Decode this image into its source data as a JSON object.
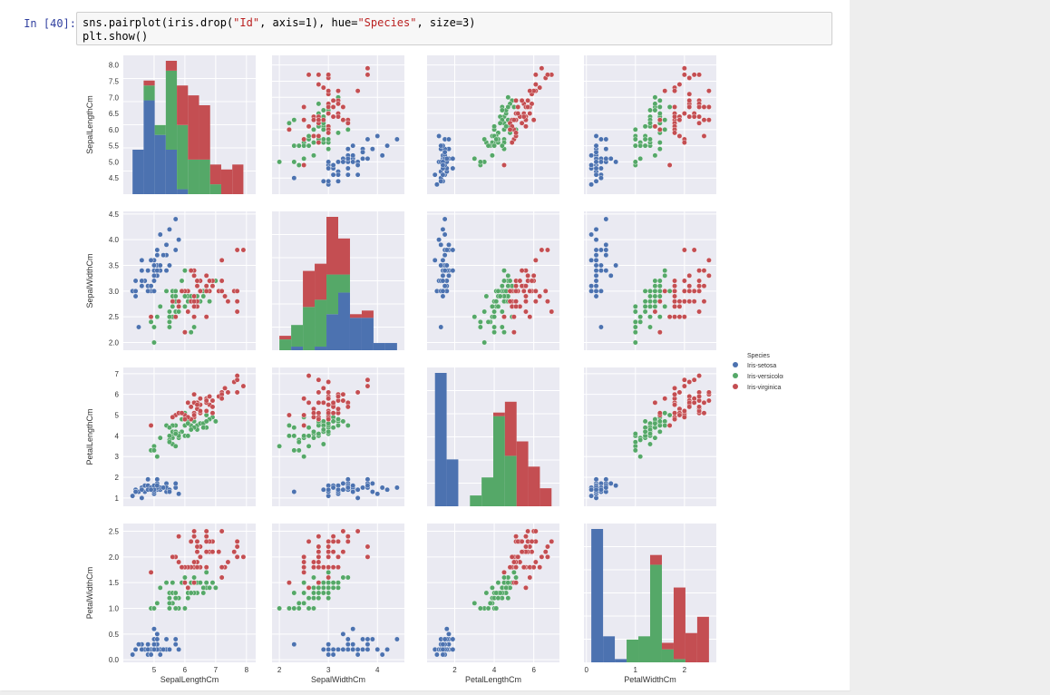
{
  "cell": {
    "prompt": "In [40]:",
    "code": {
      "line1": [
        {
          "text": "sns.pairplot(iris.drop(",
          "cls": ""
        },
        {
          "text": "\"Id\"",
          "cls": "tok-str"
        },
        {
          "text": ", axis=1), hue=",
          "cls": ""
        },
        {
          "text": "\"Species\"",
          "cls": "tok-str"
        },
        {
          "text": ", size=3)",
          "cls": ""
        }
      ],
      "line2": "plt.show()"
    }
  },
  "colors": {
    "setosa": "#4c72b0",
    "versicolor": "#55a868",
    "virginica": "#c44e52",
    "panel_bg": "#eaeaf2",
    "grid": "#ffffff"
  },
  "chart_data": {
    "type": "scatter",
    "variables": [
      "SepalLengthCm",
      "SepalWidthCm",
      "PetalLengthCm",
      "PetalWidthCm"
    ],
    "ranges": {
      "SepalLengthCm": [
        4.0,
        8.3
      ],
      "SepalWidthCm": [
        1.85,
        4.55
      ],
      "PetalLengthCm": [
        0.6,
        7.3
      ],
      "PetalWidthCm": [
        -0.05,
        2.65
      ]
    },
    "xticks": {
      "SepalLengthCm": [
        5,
        6,
        7,
        8
      ],
      "SepalWidthCm": [
        2,
        3,
        4
      ],
      "PetalLengthCm": [
        2,
        4,
        6
      ],
      "PetalWidthCm": [
        0,
        1,
        2
      ]
    },
    "yticks": {
      "SepalLengthCm": [
        "4.5",
        "5.0",
        "5.5",
        "6.0",
        "6.5",
        "7.0",
        "7.5",
        "8.0"
      ],
      "SepalWidthCm": [
        "2.0",
        "2.5",
        "3.0",
        "3.5",
        "4.0",
        "4.5"
      ],
      "PetalLengthCm": [
        "1",
        "2",
        "3",
        "4",
        "5",
        "6",
        "7"
      ],
      "PetalWidthCm": [
        "0.0",
        "0.5",
        "1.0",
        "1.5",
        "2.0",
        "2.5"
      ]
    },
    "legend": {
      "title": "Species",
      "entries": [
        "Iris-setosa",
        "Iris-versicolor",
        "Iris-virginica"
      ],
      "position": "right"
    },
    "grid": true,
    "series": [
      {
        "name": "Iris-setosa",
        "points": [
          [
            5.1,
            3.5,
            1.4,
            0.2
          ],
          [
            4.9,
            3.0,
            1.4,
            0.2
          ],
          [
            4.7,
            3.2,
            1.3,
            0.2
          ],
          [
            4.6,
            3.1,
            1.5,
            0.2
          ],
          [
            5.0,
            3.6,
            1.4,
            0.2
          ],
          [
            5.4,
            3.9,
            1.7,
            0.4
          ],
          [
            4.6,
            3.4,
            1.4,
            0.3
          ],
          [
            5.0,
            3.4,
            1.5,
            0.2
          ],
          [
            4.4,
            2.9,
            1.4,
            0.2
          ],
          [
            4.9,
            3.1,
            1.5,
            0.1
          ],
          [
            5.4,
            3.7,
            1.5,
            0.2
          ],
          [
            4.8,
            3.4,
            1.6,
            0.2
          ],
          [
            4.8,
            3.0,
            1.4,
            0.1
          ],
          [
            4.3,
            3.0,
            1.1,
            0.1
          ],
          [
            5.8,
            4.0,
            1.2,
            0.2
          ],
          [
            5.7,
            4.4,
            1.5,
            0.4
          ],
          [
            5.4,
            3.9,
            1.3,
            0.4
          ],
          [
            5.1,
            3.5,
            1.4,
            0.3
          ],
          [
            5.7,
            3.8,
            1.7,
            0.3
          ],
          [
            5.1,
            3.8,
            1.5,
            0.3
          ],
          [
            5.4,
            3.4,
            1.7,
            0.2
          ],
          [
            5.1,
            3.7,
            1.5,
            0.4
          ],
          [
            4.6,
            3.6,
            1.0,
            0.2
          ],
          [
            5.1,
            3.3,
            1.7,
            0.5
          ],
          [
            4.8,
            3.4,
            1.9,
            0.2
          ],
          [
            5.0,
            3.0,
            1.6,
            0.2
          ],
          [
            5.0,
            3.4,
            1.6,
            0.4
          ],
          [
            5.2,
            3.5,
            1.5,
            0.2
          ],
          [
            5.2,
            3.4,
            1.4,
            0.2
          ],
          [
            4.7,
            3.2,
            1.6,
            0.2
          ],
          [
            4.8,
            3.1,
            1.6,
            0.2
          ],
          [
            5.4,
            3.4,
            1.5,
            0.4
          ],
          [
            5.2,
            4.1,
            1.5,
            0.1
          ],
          [
            5.5,
            4.2,
            1.4,
            0.2
          ],
          [
            4.9,
            3.1,
            1.5,
            0.1
          ],
          [
            5.0,
            3.2,
            1.2,
            0.2
          ],
          [
            5.5,
            3.5,
            1.3,
            0.2
          ],
          [
            4.4,
            3.0,
            1.3,
            0.2
          ],
          [
            5.1,
            3.4,
            1.5,
            0.2
          ],
          [
            5.0,
            3.5,
            1.3,
            0.3
          ],
          [
            4.5,
            2.3,
            1.3,
            0.3
          ],
          [
            4.4,
            3.2,
            1.3,
            0.2
          ],
          [
            5.0,
            3.5,
            1.6,
            0.6
          ],
          [
            5.1,
            3.8,
            1.9,
            0.4
          ],
          [
            4.8,
            3.0,
            1.4,
            0.3
          ],
          [
            5.1,
            3.8,
            1.6,
            0.2
          ],
          [
            4.6,
            3.2,
            1.4,
            0.2
          ],
          [
            5.3,
            3.7,
            1.5,
            0.2
          ],
          [
            5.0,
            3.3,
            1.4,
            0.2
          ],
          [
            4.9,
            3.6,
            1.4,
            0.1
          ]
        ]
      },
      {
        "name": "Iris-versicolor",
        "points": [
          [
            7.0,
            3.2,
            4.7,
            1.4
          ],
          [
            6.4,
            3.2,
            4.5,
            1.5
          ],
          [
            6.9,
            3.1,
            4.9,
            1.5
          ],
          [
            5.5,
            2.3,
            4.0,
            1.3
          ],
          [
            6.5,
            2.8,
            4.6,
            1.5
          ],
          [
            5.7,
            2.8,
            4.5,
            1.3
          ],
          [
            6.3,
            3.3,
            4.7,
            1.6
          ],
          [
            4.9,
            2.4,
            3.3,
            1.0
          ],
          [
            6.6,
            2.9,
            4.6,
            1.3
          ],
          [
            5.2,
            2.7,
            3.9,
            1.4
          ],
          [
            5.0,
            2.0,
            3.5,
            1.0
          ],
          [
            5.9,
            3.0,
            4.2,
            1.5
          ],
          [
            6.0,
            2.2,
            4.0,
            1.0
          ],
          [
            6.1,
            2.9,
            4.7,
            1.4
          ],
          [
            5.6,
            2.9,
            3.6,
            1.3
          ],
          [
            6.7,
            3.1,
            4.4,
            1.4
          ],
          [
            5.6,
            3.0,
            4.5,
            1.5
          ],
          [
            5.8,
            2.7,
            4.1,
            1.0
          ],
          [
            6.2,
            2.2,
            4.5,
            1.5
          ],
          [
            5.6,
            2.5,
            3.9,
            1.1
          ],
          [
            5.9,
            3.2,
            4.8,
            1.8
          ],
          [
            6.1,
            2.8,
            4.0,
            1.3
          ],
          [
            6.3,
            2.5,
            4.9,
            1.5
          ],
          [
            6.1,
            2.8,
            4.7,
            1.2
          ],
          [
            6.4,
            2.9,
            4.3,
            1.3
          ],
          [
            6.6,
            3.0,
            4.4,
            1.4
          ],
          [
            6.8,
            2.8,
            4.8,
            1.4
          ],
          [
            6.7,
            3.0,
            5.0,
            1.7
          ],
          [
            6.0,
            2.9,
            4.5,
            1.5
          ],
          [
            5.7,
            2.6,
            3.5,
            1.0
          ],
          [
            5.5,
            2.4,
            3.8,
            1.1
          ],
          [
            5.5,
            2.4,
            3.7,
            1.0
          ],
          [
            5.8,
            2.7,
            3.9,
            1.2
          ],
          [
            6.0,
            2.7,
            5.1,
            1.6
          ],
          [
            5.4,
            3.0,
            4.5,
            1.5
          ],
          [
            6.0,
            3.4,
            4.5,
            1.6
          ],
          [
            6.7,
            3.1,
            4.7,
            1.5
          ],
          [
            6.3,
            2.3,
            4.4,
            1.3
          ],
          [
            5.6,
            3.0,
            4.1,
            1.3
          ],
          [
            5.5,
            2.5,
            4.0,
            1.3
          ],
          [
            5.5,
            2.6,
            4.4,
            1.2
          ],
          [
            6.1,
            3.0,
            4.6,
            1.4
          ],
          [
            5.8,
            2.6,
            4.0,
            1.2
          ],
          [
            5.0,
            2.3,
            3.3,
            1.0
          ],
          [
            5.6,
            2.7,
            4.2,
            1.3
          ],
          [
            5.7,
            3.0,
            4.2,
            1.2
          ],
          [
            5.7,
            2.9,
            4.2,
            1.3
          ],
          [
            6.2,
            2.9,
            4.3,
            1.3
          ],
          [
            5.1,
            2.5,
            3.0,
            1.1
          ],
          [
            5.7,
            2.8,
            4.1,
            1.3
          ]
        ]
      },
      {
        "name": "Iris-virginica",
        "points": [
          [
            6.3,
            3.3,
            6.0,
            2.5
          ],
          [
            5.8,
            2.7,
            5.1,
            1.9
          ],
          [
            7.1,
            3.0,
            5.9,
            2.1
          ],
          [
            6.3,
            2.9,
            5.6,
            1.8
          ],
          [
            6.5,
            3.0,
            5.8,
            2.2
          ],
          [
            7.6,
            3.0,
            6.6,
            2.1
          ],
          [
            4.9,
            2.5,
            4.5,
            1.7
          ],
          [
            7.3,
            2.9,
            6.3,
            1.8
          ],
          [
            6.7,
            2.5,
            5.8,
            1.8
          ],
          [
            7.2,
            3.6,
            6.1,
            2.5
          ],
          [
            6.5,
            3.2,
            5.1,
            2.0
          ],
          [
            6.4,
            2.7,
            5.3,
            1.9
          ],
          [
            6.8,
            3.0,
            5.5,
            2.1
          ],
          [
            5.7,
            2.5,
            5.0,
            2.0
          ],
          [
            5.8,
            2.8,
            5.1,
            2.4
          ],
          [
            6.4,
            3.2,
            5.3,
            2.3
          ],
          [
            6.5,
            3.0,
            5.5,
            1.8
          ],
          [
            7.7,
            3.8,
            6.7,
            2.2
          ],
          [
            7.7,
            2.6,
            6.9,
            2.3
          ],
          [
            6.0,
            2.2,
            5.0,
            1.5
          ],
          [
            6.9,
            3.2,
            5.7,
            2.3
          ],
          [
            5.6,
            2.8,
            4.9,
            2.0
          ],
          [
            7.7,
            2.8,
            6.7,
            2.0
          ],
          [
            6.3,
            2.7,
            4.9,
            1.8
          ],
          [
            6.7,
            3.3,
            5.7,
            2.1
          ],
          [
            7.2,
            3.2,
            6.0,
            1.8
          ],
          [
            6.2,
            2.8,
            4.8,
            1.8
          ],
          [
            6.1,
            3.0,
            4.9,
            1.8
          ],
          [
            6.4,
            2.8,
            5.6,
            2.1
          ],
          [
            7.2,
            3.0,
            5.8,
            1.6
          ],
          [
            7.4,
            2.8,
            6.1,
            1.9
          ],
          [
            7.9,
            3.8,
            6.4,
            2.0
          ],
          [
            6.4,
            2.8,
            5.6,
            2.2
          ],
          [
            6.3,
            2.8,
            5.1,
            1.5
          ],
          [
            6.1,
            2.6,
            5.6,
            1.4
          ],
          [
            7.7,
            3.0,
            6.1,
            2.3
          ],
          [
            6.3,
            3.4,
            5.6,
            2.4
          ],
          [
            6.4,
            3.1,
            5.5,
            1.8
          ],
          [
            6.0,
            3.0,
            4.8,
            1.8
          ],
          [
            6.9,
            3.1,
            5.4,
            2.1
          ],
          [
            6.7,
            3.1,
            5.6,
            2.4
          ],
          [
            6.9,
            3.1,
            5.1,
            2.3
          ],
          [
            5.8,
            2.7,
            5.1,
            1.9
          ],
          [
            6.8,
            3.2,
            5.9,
            2.3
          ],
          [
            6.7,
            3.3,
            5.7,
            2.5
          ],
          [
            6.7,
            3.0,
            5.2,
            2.3
          ],
          [
            6.3,
            2.5,
            5.0,
            1.9
          ],
          [
            6.5,
            3.0,
            5.2,
            2.0
          ],
          [
            6.2,
            3.4,
            5.4,
            2.3
          ],
          [
            5.9,
            3.0,
            5.1,
            1.8
          ]
        ]
      }
    ]
  }
}
